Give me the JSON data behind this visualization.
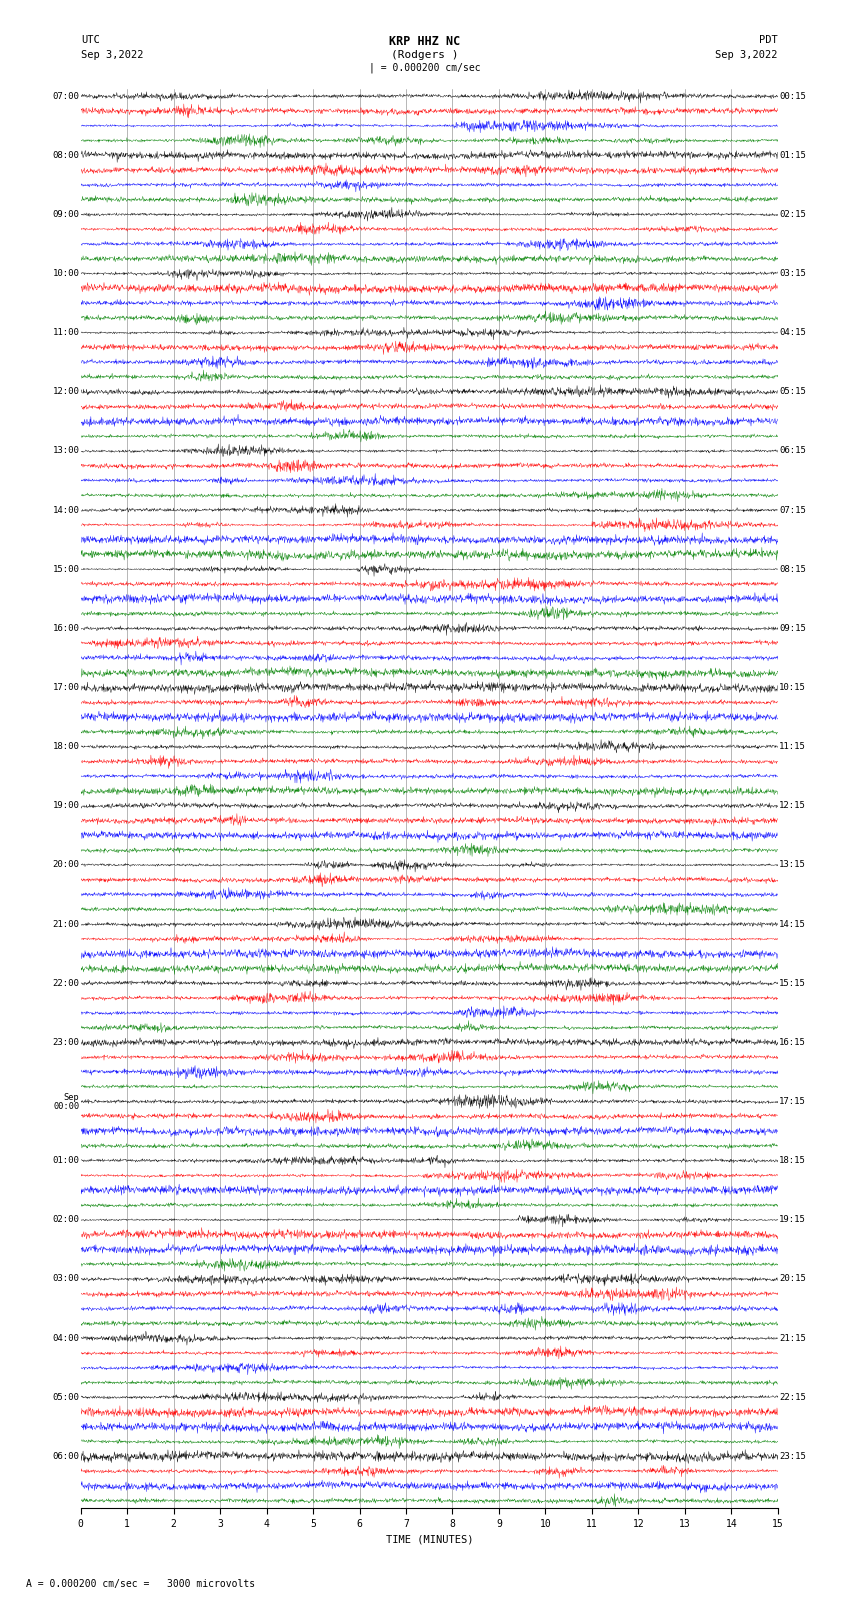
{
  "title_line1": "KRP HHZ NC",
  "title_line2": "(Rodgers )",
  "scale_bar_text": "| = 0.000200 cm/sec",
  "left_timezone": "UTC",
  "left_date": "Sep 3,2022",
  "right_timezone": "PDT",
  "right_date": "Sep 3,2022",
  "xlabel": "TIME (MINUTES)",
  "footer_text": "A = 0.000200 cm/sec =   3000 microvolts",
  "colors": [
    "black",
    "red",
    "blue",
    "green"
  ],
  "n_traces": 96,
  "samples_per_trace": 1800,
  "noise_scale": [
    0.38,
    0.55,
    0.48,
    0.3
  ],
  "fig_width": 8.5,
  "fig_height": 16.13,
  "dpi": 100,
  "bg_color": "white",
  "left_labels_utc": [
    "07:00",
    "08:00",
    "09:00",
    "10:00",
    "11:00",
    "12:00",
    "13:00",
    "14:00",
    "15:00",
    "16:00",
    "17:00",
    "18:00",
    "19:00",
    "20:00",
    "21:00",
    "22:00",
    "23:00",
    "Sep\n00:00",
    "01:00",
    "02:00",
    "03:00",
    "04:00",
    "05:00",
    "06:00"
  ],
  "right_labels_pdt": [
    "00:15",
    "01:15",
    "02:15",
    "03:15",
    "04:15",
    "05:15",
    "06:15",
    "07:15",
    "08:15",
    "09:15",
    "10:15",
    "11:15",
    "12:15",
    "13:15",
    "14:15",
    "15:15",
    "16:15",
    "17:15",
    "18:15",
    "19:15",
    "20:15",
    "21:15",
    "22:15",
    "23:15"
  ],
  "gridline_positions": [
    1,
    2,
    3,
    4,
    5,
    6,
    7,
    8,
    9,
    10,
    11,
    12,
    13,
    14
  ]
}
